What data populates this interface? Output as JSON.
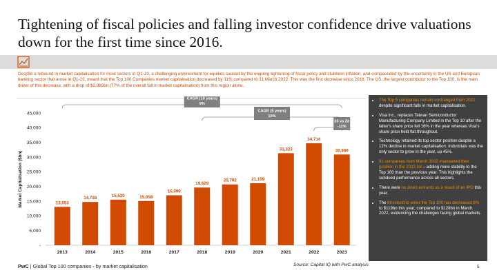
{
  "title": "Tightening of fiscal policies and falling investor confidence drive valuations down for the first time since 2016.",
  "intro": "Despite a rebound in market capitalisation for most sectors in Q1-23, a challenging environment for equities caused by the ongoing tightening of fiscal policy and stubborn inflation, and compounded by the uncertainty in the US and European banking sector that arose in Q1-23, meant that the Top 100 Companies market capitalisation decreased by 11% compared to 31 March 2022. This was the first decrease since 2016. The US, the largest contributor to the Top 100, is the main driver of this decrease, with a drop of $2,969bn (77% of the overall fall in market capitalisation) from this region alone.",
  "colors": {
    "accent": "#d04a02",
    "highlight": "#eb8c00",
    "panel": "#404040",
    "badge": "#7f7f7f"
  },
  "chart_data": {
    "type": "bar",
    "ylabel": "Market Capitalisation ($bn)",
    "ylim": [
      0,
      45000
    ],
    "yticks": [
      "-",
      "5,000",
      "10,000",
      "15,000",
      "20,000",
      "25,000",
      "30,000",
      "35,000",
      "40,000",
      "45,000"
    ],
    "categories": [
      "2013",
      "2014",
      "2015",
      "2016",
      "2017",
      "2018",
      "2019",
      "2020",
      "2021",
      "2022",
      "2023"
    ],
    "values": [
      13053,
      14728,
      15520,
      15058,
      16999,
      19629,
      20702,
      21109,
      31323,
      34714,
      30869
    ],
    "labels": [
      "13,053",
      "14,728",
      "15,520",
      "15,058",
      "16,999",
      "19,629",
      "20,702",
      "21,109",
      "31,323",
      "34,714",
      "30,869"
    ],
    "color": "#d04a02",
    "annotations": [
      {
        "line1": "CAGR (10 years)",
        "line2": "9%",
        "from": "2013",
        "to": "2023"
      },
      {
        "line1": "CAGR (5 years)",
        "line2": "10%",
        "from": "2018",
        "to": "2023"
      },
      {
        "line1": "23 vs 22",
        "line2": "-11%",
        "from": "2022",
        "to": "2023"
      }
    ]
  },
  "panel": {
    "items": [
      {
        "pre": "",
        "hl": "The Top 5 companies remain unchanged from 2022",
        "post": " despite significant falls in market capitalisation."
      },
      {
        "pre": "Visa Inc., replaces Taiwan Semiconductor Manufacturing Company Limited in the Top 10 after the latter's share price fell 16% in the year whereas Visa's share price held flat throughout.",
        "hl": "",
        "post": ""
      },
      {
        "pre": "Technology retained its top sector position despite a 12% decline in market capitalisation. Industrials was the only sector to grow in the year, up 45%.",
        "hl": "",
        "post": ""
      },
      {
        "pre": "",
        "hl": "91 companies from March 2022 maintained their position in the 2023 list",
        "post": " – adding more stability to the Top 100 than the previous year. This highlights the subdued performance across all sectors."
      },
      {
        "pre": "There were ",
        "hl": "no direct entrants as a result of an IPO",
        "post": " this year."
      },
      {
        "pre": "The ",
        "hl": "threshold to enter the Top 100 has decreased 8%",
        "post": " to $119bn this year, compared to $128bn in March 2022, evidencing the challenges facing global markets."
      }
    ]
  },
  "source": "Source: Capital IQ with PwC analysis",
  "footer": {
    "brand": "PwC",
    "sep": " | ",
    "text": "Global Top 100 companies - by market capitalisation"
  },
  "page_number": "5"
}
